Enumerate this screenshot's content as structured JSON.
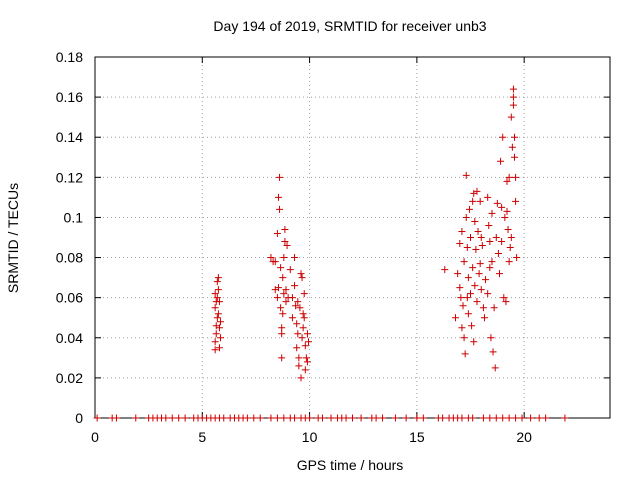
{
  "chart_data": {
    "type": "scatter",
    "title": "Day 194 of 2019, SRMTID for receiver unb3",
    "xlabel": "GPS time / hours",
    "ylabel": "SRMTID / TECUs",
    "xlim": [
      0,
      24
    ],
    "ylim": [
      0,
      0.18
    ],
    "xticks": [
      0,
      5,
      10,
      15,
      20
    ],
    "yticks": [
      0,
      0.02,
      0.04,
      0.06,
      0.08,
      0.1,
      0.12,
      0.14,
      0.16,
      0.18
    ],
    "xtick_labels": [
      "0",
      "5",
      "10",
      "15",
      "20"
    ],
    "ytick_labels": [
      "0",
      "0.02",
      "0.04",
      "0.06",
      "0.08",
      "0.1",
      "0.12",
      "0.14",
      "0.16",
      "0.18"
    ],
    "grid": true,
    "marker": "+",
    "color": "#cc0000",
    "series": [
      {
        "name": "SRMTID",
        "points": [
          [
            0.1,
            0
          ],
          [
            0.8,
            0
          ],
          [
            1.0,
            0
          ],
          [
            1.9,
            0
          ],
          [
            2.5,
            0
          ],
          [
            2.7,
            0
          ],
          [
            2.9,
            0
          ],
          [
            3.1,
            0
          ],
          [
            3.3,
            0
          ],
          [
            3.6,
            0
          ],
          [
            3.9,
            0
          ],
          [
            4.2,
            0
          ],
          [
            4.6,
            0
          ],
          [
            4.8,
            0
          ],
          [
            5.0,
            0
          ],
          [
            5.2,
            0
          ],
          [
            5.4,
            0
          ],
          [
            5.6,
            0
          ],
          [
            5.8,
            0
          ],
          [
            6.0,
            0
          ],
          [
            6.3,
            0
          ],
          [
            6.5,
            0
          ],
          [
            6.7,
            0
          ],
          [
            6.9,
            0
          ],
          [
            7.1,
            0
          ],
          [
            7.4,
            0
          ],
          [
            7.7,
            0
          ],
          [
            8.2,
            0
          ],
          [
            8.5,
            0
          ],
          [
            8.8,
            0
          ],
          [
            9.1,
            0
          ],
          [
            9.3,
            0
          ],
          [
            9.6,
            0
          ],
          [
            9.8,
            0
          ],
          [
            10.0,
            0
          ],
          [
            10.4,
            0
          ],
          [
            10.6,
            0
          ],
          [
            11.0,
            0
          ],
          [
            11.3,
            0
          ],
          [
            11.5,
            0
          ],
          [
            11.7,
            0
          ],
          [
            12.0,
            0
          ],
          [
            12.4,
            0
          ],
          [
            12.9,
            0
          ],
          [
            13.1,
            0
          ],
          [
            13.4,
            0
          ],
          [
            14.0,
            0
          ],
          [
            14.5,
            0
          ],
          [
            15.0,
            0
          ],
          [
            15.3,
            0
          ],
          [
            16.0,
            0
          ],
          [
            16.2,
            0
          ],
          [
            16.5,
            0
          ],
          [
            16.7,
            0
          ],
          [
            16.9,
            0
          ],
          [
            17.1,
            0
          ],
          [
            17.4,
            0
          ],
          [
            17.6,
            0
          ],
          [
            18.1,
            0
          ],
          [
            18.4,
            0
          ],
          [
            18.7,
            0
          ],
          [
            19.0,
            0
          ],
          [
            19.3,
            0
          ],
          [
            19.6,
            0
          ],
          [
            19.9,
            0
          ],
          [
            20.3,
            0
          ],
          [
            20.7,
            0
          ],
          [
            21.0,
            0
          ],
          [
            21.9,
            0
          ],
          [
            5.6,
            0.034
          ],
          [
            5.6,
            0.038
          ],
          [
            5.65,
            0.042
          ],
          [
            5.65,
            0.046
          ],
          [
            5.7,
            0.05
          ],
          [
            5.6,
            0.055
          ],
          [
            5.7,
            0.06
          ],
          [
            5.75,
            0.064
          ],
          [
            5.7,
            0.068
          ],
          [
            5.75,
            0.07
          ],
          [
            5.8,
            0.058
          ],
          [
            5.8,
            0.045
          ],
          [
            5.85,
            0.04
          ],
          [
            5.6,
            0.062
          ],
          [
            5.75,
            0.052
          ],
          [
            5.8,
            0.035
          ],
          [
            5.65,
            0.058
          ],
          [
            5.85,
            0.048
          ],
          [
            8.2,
            0.08
          ],
          [
            8.3,
            0.078
          ],
          [
            8.4,
            0.064
          ],
          [
            8.5,
            0.06
          ],
          [
            8.5,
            0.092
          ],
          [
            8.55,
            0.11
          ],
          [
            8.6,
            0.12
          ],
          [
            8.6,
            0.104
          ],
          [
            8.65,
            0.075
          ],
          [
            8.65,
            0.055
          ],
          [
            8.7,
            0.045
          ],
          [
            8.7,
            0.042
          ],
          [
            8.75,
            0.052
          ],
          [
            8.75,
            0.07
          ],
          [
            8.8,
            0.08
          ],
          [
            8.8,
            0.062
          ],
          [
            8.85,
            0.094
          ],
          [
            8.85,
            0.088
          ],
          [
            8.9,
            0.058
          ],
          [
            8.9,
            0.064
          ],
          [
            8.95,
            0.086
          ],
          [
            9.0,
            0.06
          ],
          [
            9.1,
            0.074
          ],
          [
            9.2,
            0.05
          ],
          [
            9.3,
            0.08
          ],
          [
            9.3,
            0.066
          ],
          [
            9.35,
            0.056
          ],
          [
            9.4,
            0.047
          ],
          [
            9.4,
            0.035
          ],
          [
            9.45,
            0.042
          ],
          [
            9.5,
            0.026
          ],
          [
            9.5,
            0.03
          ],
          [
            9.55,
            0.055
          ],
          [
            9.6,
            0.072
          ],
          [
            9.6,
            0.02
          ],
          [
            9.65,
            0.04
          ],
          [
            9.7,
            0.045
          ],
          [
            9.7,
            0.052
          ],
          [
            9.75,
            0.062
          ],
          [
            9.8,
            0.036
          ],
          [
            9.8,
            0.024
          ],
          [
            9.85,
            0.03
          ],
          [
            9.9,
            0.042
          ],
          [
            9.9,
            0.028
          ],
          [
            9.95,
            0.038
          ],
          [
            8.4,
            0.078
          ],
          [
            8.55,
            0.065
          ],
          [
            8.7,
            0.03
          ],
          [
            9.2,
            0.06
          ],
          [
            9.45,
            0.058
          ],
          [
            9.65,
            0.07
          ],
          [
            9.75,
            0.05
          ],
          [
            16.3,
            0.074
          ],
          [
            16.8,
            0.05
          ],
          [
            16.9,
            0.072
          ],
          [
            17.0,
            0.087
          ],
          [
            17.0,
            0.065
          ],
          [
            17.05,
            0.06
          ],
          [
            17.1,
            0.093
          ],
          [
            17.1,
            0.045
          ],
          [
            17.15,
            0.056
          ],
          [
            17.2,
            0.078
          ],
          [
            17.2,
            0.04
          ],
          [
            17.25,
            0.032
          ],
          [
            17.3,
            0.121
          ],
          [
            17.3,
            0.1
          ],
          [
            17.35,
            0.085
          ],
          [
            17.4,
            0.07
          ],
          [
            17.4,
            0.052
          ],
          [
            17.45,
            0.104
          ],
          [
            17.5,
            0.09
          ],
          [
            17.5,
            0.062
          ],
          [
            17.55,
            0.046
          ],
          [
            17.6,
            0.108
          ],
          [
            17.6,
            0.075
          ],
          [
            17.65,
            0.112
          ],
          [
            17.7,
            0.098
          ],
          [
            17.7,
            0.066
          ],
          [
            17.75,
            0.084
          ],
          [
            17.8,
            0.113
          ],
          [
            17.8,
            0.058
          ],
          [
            17.85,
            0.093
          ],
          [
            17.9,
            0.072
          ],
          [
            17.95,
            0.108
          ],
          [
            18.0,
            0.09
          ],
          [
            18.0,
            0.064
          ],
          [
            18.05,
            0.086
          ],
          [
            18.1,
            0.055
          ],
          [
            18.15,
            0.05
          ],
          [
            18.2,
            0.069
          ],
          [
            18.3,
            0.11
          ],
          [
            18.3,
            0.062
          ],
          [
            18.35,
            0.096
          ],
          [
            18.4,
            0.088
          ],
          [
            18.45,
            0.04
          ],
          [
            18.5,
            0.102
          ],
          [
            18.5,
            0.078
          ],
          [
            18.55,
            0.033
          ],
          [
            18.6,
            0.055
          ],
          [
            18.65,
            0.025
          ],
          [
            18.7,
            0.09
          ],
          [
            18.75,
            0.107
          ],
          [
            18.8,
            0.082
          ],
          [
            18.85,
            0.072
          ],
          [
            18.9,
            0.128
          ],
          [
            18.95,
            0.088
          ],
          [
            19.0,
            0.14
          ],
          [
            19.05,
            0.06
          ],
          [
            19.1,
            0.1
          ],
          [
            19.15,
            0.058
          ],
          [
            19.2,
            0.118
          ],
          [
            19.25,
            0.094
          ],
          [
            19.3,
            0.12
          ],
          [
            19.35,
            0.085
          ],
          [
            19.4,
            0.15
          ],
          [
            19.45,
            0.135
          ],
          [
            19.5,
            0.164
          ],
          [
            19.5,
            0.16
          ],
          [
            19.5,
            0.156
          ],
          [
            19.55,
            0.14
          ],
          [
            19.55,
            0.13
          ],
          [
            19.6,
            0.12
          ],
          [
            19.6,
            0.108
          ],
          [
            19.65,
            0.08
          ],
          [
            19.4,
            0.09
          ],
          [
            19.3,
            0.078
          ],
          [
            19.2,
            0.103
          ],
          [
            18.95,
            0.105
          ],
          [
            18.4,
            0.075
          ],
          [
            17.95,
            0.077
          ],
          [
            17.35,
            0.06
          ],
          [
            17.65,
            0.038
          ]
        ]
      }
    ]
  }
}
